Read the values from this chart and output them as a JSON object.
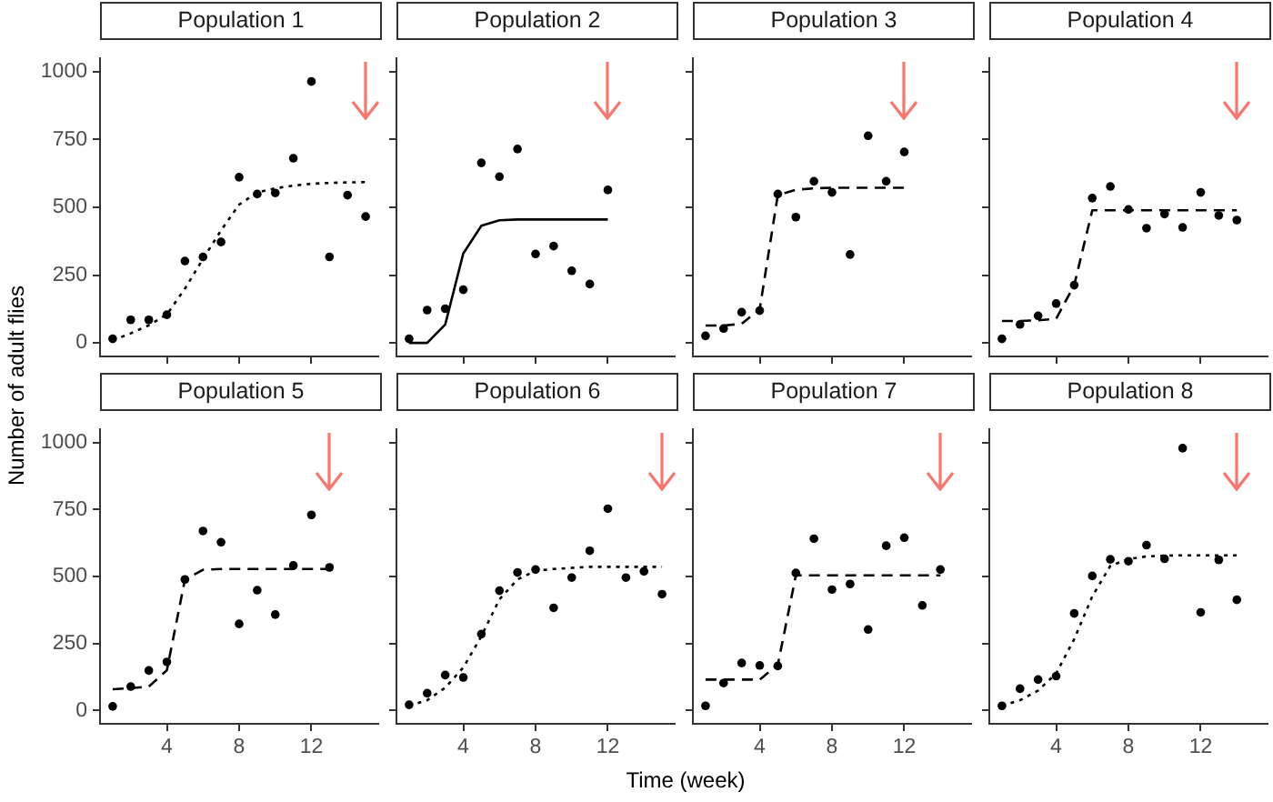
{
  "chart_data": [
    {
      "type": "scatter",
      "title": "Population 1",
      "x": [
        1,
        2,
        3,
        4,
        5,
        6,
        7,
        8,
        9,
        10,
        11,
        12,
        13,
        14,
        15
      ],
      "xlim": [
        0.3,
        15.7
      ],
      "xticks": [
        4,
        8,
        12
      ],
      "ylim": [
        -50,
        1050
      ],
      "yticks": [
        0,
        250,
        500,
        750,
        1000
      ],
      "tick_labels": "y",
      "series": [
        {
          "type": "scatter",
          "color": "#000000",
          "marker": "circle",
          "values": [
            15,
            85,
            85,
            104,
            302,
            317,
            372,
            611,
            549,
            553,
            681,
            964,
            317,
            545,
            466
          ]
        },
        {
          "type": "line",
          "color": "#000000",
          "marker": "none",
          "line_style": "dotted",
          "values": [
            10,
            35,
            65,
            105,
            200,
            310,
            415,
            510,
            555,
            570,
            580,
            587,
            590,
            592,
            593
          ]
        }
      ]
    },
    {
      "type": "scatter",
      "title": "Population 2",
      "x": [
        1,
        2,
        3,
        4,
        5,
        6,
        7,
        8,
        9,
        10,
        11,
        12
      ],
      "xlim": [
        0.3,
        15.7
      ],
      "xticks": [
        4,
        8,
        12
      ],
      "ylim": [
        -50,
        1050
      ],
      "yticks": [
        0,
        250,
        500,
        750,
        1000
      ],
      "tick_labels": false,
      "series": [
        {
          "type": "scatter",
          "color": "#000000",
          "marker": "circle",
          "values": [
            15,
            121,
            126,
            196,
            664,
            613,
            715,
            328,
            357,
            266,
            217,
            564
          ]
        },
        {
          "type": "line",
          "color": "#000000",
          "marker": "none",
          "line_style": "solid",
          "values": [
            0,
            0,
            68,
            330,
            432,
            452,
            455,
            455,
            455,
            455,
            455,
            455
          ]
        }
      ]
    },
    {
      "type": "scatter",
      "title": "Population 3",
      "x": [
        1,
        2,
        3,
        4,
        5,
        6,
        7,
        8,
        9,
        10,
        11,
        12
      ],
      "xlim": [
        0.3,
        15.7
      ],
      "xticks": [
        4,
        8,
        12
      ],
      "ylim": [
        -50,
        1050
      ],
      "yticks": [
        0,
        250,
        500,
        750,
        1000
      ],
      "tick_labels": false,
      "series": [
        {
          "type": "scatter",
          "color": "#000000",
          "marker": "circle",
          "values": [
            26,
            53,
            113,
            119,
            549,
            464,
            596,
            555,
            326,
            764,
            596,
            704
          ]
        },
        {
          "type": "line",
          "color": "#000000",
          "marker": "none",
          "line_style": "dashed",
          "values": [
            64,
            64,
            70,
            125,
            545,
            565,
            570,
            572,
            572,
            572,
            572,
            572
          ]
        }
      ]
    },
    {
      "type": "scatter",
      "title": "Population 4",
      "x": [
        1,
        2,
        3,
        4,
        5,
        6,
        7,
        8,
        9,
        10,
        11,
        12,
        13,
        14
      ],
      "xlim": [
        0.3,
        15.7
      ],
      "xticks": [
        4,
        8,
        12
      ],
      "ylim": [
        -50,
        1050
      ],
      "yticks": [
        0,
        250,
        500,
        750,
        1000
      ],
      "tick_labels": false,
      "series": [
        {
          "type": "scatter",
          "color": "#000000",
          "marker": "circle",
          "values": [
            15,
            68,
            100,
            145,
            213,
            534,
            577,
            492,
            423,
            475,
            426,
            555,
            470,
            453
          ]
        },
        {
          "type": "line",
          "color": "#000000",
          "marker": "none",
          "line_style": "dashed",
          "values": [
            81,
            81,
            83,
            89,
            213,
            489,
            489,
            489,
            489,
            489,
            489,
            489,
            489,
            489
          ]
        }
      ]
    },
    {
      "type": "scatter",
      "title": "Population 5",
      "x": [
        1,
        2,
        3,
        4,
        5,
        6,
        7,
        8,
        9,
        10,
        11,
        12,
        13
      ],
      "xlim": [
        0.3,
        15.7
      ],
      "xticks": [
        4,
        8,
        12
      ],
      "ylim": [
        -50,
        1050
      ],
      "yticks": [
        0,
        250,
        500,
        750,
        1000
      ],
      "series": [
        {
          "type": "scatter",
          "color": "#000000",
          "marker": "circle",
          "values": [
            15,
            89,
            149,
            181,
            489,
            670,
            628,
            323,
            449,
            358,
            541,
            730,
            534
          ]
        },
        {
          "type": "line",
          "color": "#000000",
          "marker": "none",
          "line_style": "dashed",
          "values": [
            79,
            83,
            89,
            150,
            489,
            525,
            528,
            528,
            528,
            528,
            528,
            528,
            528
          ]
        }
      ]
    },
    {
      "type": "scatter",
      "title": "Population 6",
      "x": [
        1,
        2,
        3,
        4,
        5,
        6,
        7,
        8,
        9,
        10,
        11,
        12,
        13,
        14,
        15
      ],
      "xlim": [
        0.3,
        15.7
      ],
      "xticks": [
        4,
        8,
        12
      ],
      "ylim": [
        -50,
        1050
      ],
      "yticks": [
        0,
        250,
        500,
        750,
        1000
      ],
      "tick_labels": "x",
      "series": [
        {
          "type": "scatter",
          "color": "#000000",
          "marker": "circle",
          "values": [
            21,
            64,
            132,
            123,
            285,
            447,
            515,
            526,
            383,
            496,
            596,
            753,
            496,
            519,
            434
          ]
        },
        {
          "type": "line",
          "color": "#000000",
          "marker": "none",
          "line_style": "dotted",
          "values": [
            17,
            38,
            85,
            160,
            277,
            415,
            489,
            521,
            528,
            532,
            536,
            536,
            536,
            536,
            536
          ]
        }
      ]
    },
    {
      "type": "scatter",
      "title": "Population 7",
      "x": [
        1,
        2,
        3,
        4,
        5,
        6,
        7,
        8,
        9,
        10,
        11,
        12,
        13,
        14
      ],
      "xlim": [
        0.3,
        15.7
      ],
      "xticks": [
        4,
        8,
        12
      ],
      "ylim": [
        -50,
        1050
      ],
      "yticks": [
        0,
        250,
        500,
        750,
        1000
      ],
      "tick_labels": "x",
      "series": [
        {
          "type": "scatter",
          "color": "#000000",
          "marker": "circle",
          "values": [
            17,
            102,
            177,
            168,
            166,
            513,
            641,
            451,
            472,
            302,
            615,
            645,
            392,
            526
          ]
        },
        {
          "type": "line",
          "color": "#000000",
          "marker": "none",
          "line_style": "dashed",
          "values": [
            115,
            115,
            115,
            115,
            170,
            504,
            504,
            504,
            504,
            504,
            504,
            504,
            504,
            504
          ]
        }
      ]
    },
    {
      "type": "scatter",
      "title": "Population 8",
      "x": [
        1,
        2,
        3,
        4,
        5,
        6,
        7,
        8,
        9,
        10,
        11,
        12,
        13,
        14
      ],
      "xlim": [
        0.3,
        15.7
      ],
      "xticks": [
        4,
        8,
        12
      ],
      "ylim": [
        -50,
        1050
      ],
      "yticks": [
        0,
        250,
        500,
        750,
        1000
      ],
      "tick_labels": "x",
      "series": [
        {
          "type": "scatter",
          "color": "#000000",
          "marker": "circle",
          "values": [
            17,
            81,
            115,
            128,
            362,
            502,
            564,
            557,
            617,
            566,
            979,
            366,
            562,
            413
          ]
        },
        {
          "type": "line",
          "color": "#000000",
          "marker": "none",
          "line_style": "dotted",
          "values": [
            17,
            38,
            74,
            138,
            266,
            426,
            540,
            565,
            575,
            578,
            579,
            579,
            579,
            579
          ]
        }
      ]
    },
    {
      "type": "other",
      "xlabel": "Time (week)",
      "ylabel": "Number of adult flies"
    }
  ]
}
